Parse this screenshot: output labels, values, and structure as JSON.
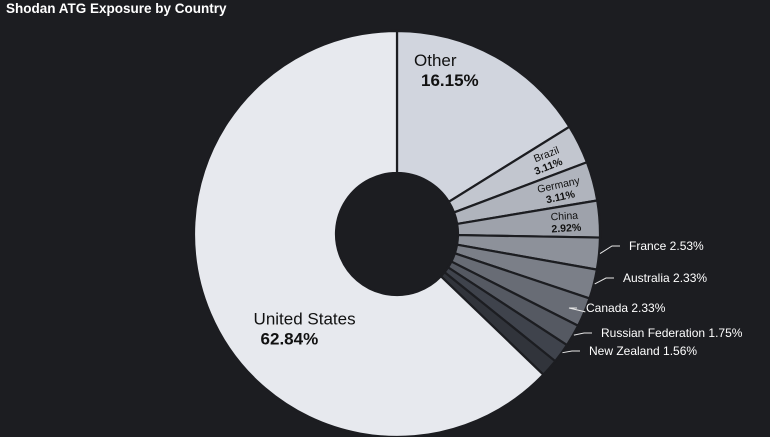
{
  "panel": {
    "title": "Shodan ATG Exposure by Country"
  },
  "chart_data": {
    "type": "pie",
    "style": "donut",
    "title": "Shodan ATG Exposure by Country",
    "start_angle_deg": 0,
    "direction": "clockwise",
    "slices": [
      {
        "label": "Other",
        "value": 16.15,
        "value_text": "16.15%",
        "color": "#d1d5de",
        "label_style": "inside-large"
      },
      {
        "label": "Brazil",
        "value": 3.11,
        "value_text": "3.11%",
        "color": "#c2c6cf",
        "label_style": "inside-small"
      },
      {
        "label": "Germany",
        "value": 3.11,
        "value_text": "3.11%",
        "color": "#b0b4bd",
        "label_style": "inside-small"
      },
      {
        "label": "China",
        "value": 2.92,
        "value_text": "2.92%",
        "color": "#9ea2ab",
        "label_style": "inside-small"
      },
      {
        "label": "France",
        "value": 2.53,
        "value_text": "2.53%",
        "color": "#8d919a",
        "label_style": "outside"
      },
      {
        "label": "Australia",
        "value": 2.33,
        "value_text": "2.33%",
        "color": "#7b7f88",
        "label_style": "outside"
      },
      {
        "label": "Canada",
        "value": 2.33,
        "value_text": "2.33%",
        "color": "#686c75",
        "label_style": "outside"
      },
      {
        "label": "Russian Federation",
        "value": 1.75,
        "value_text": "1.75%",
        "color": "#555962",
        "label_style": "outside"
      },
      {
        "label": "New Zealand",
        "value": 1.56,
        "value_text": "1.56%",
        "color": "#3f434c",
        "label_style": "outside"
      },
      {
        "label": "",
        "value": 1.41,
        "value_text": "",
        "color": "#31343b",
        "label_style": "none"
      },
      {
        "label": "United States",
        "value": 62.84,
        "value_text": "62.84%",
        "color": "#e7e9ee",
        "label_style": "inside-large"
      }
    ]
  }
}
